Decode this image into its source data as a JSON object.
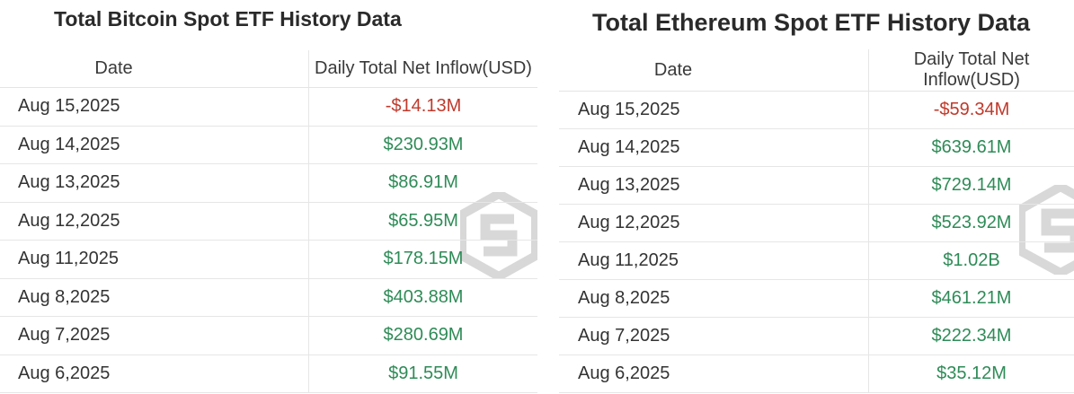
{
  "bitcoin": {
    "title": "Total Bitcoin Spot ETF History Data",
    "columns": [
      "Date",
      "Daily Total Net Inflow(USD)"
    ],
    "rows": [
      {
        "date": "Aug 15,2025",
        "value": "-$14.13M",
        "sign": "negative"
      },
      {
        "date": "Aug 14,2025",
        "value": "$230.93M",
        "sign": "positive"
      },
      {
        "date": "Aug 13,2025",
        "value": "$86.91M",
        "sign": "positive"
      },
      {
        "date": "Aug 12,2025",
        "value": "$65.95M",
        "sign": "positive"
      },
      {
        "date": "Aug 11,2025",
        "value": "$178.15M",
        "sign": "positive"
      },
      {
        "date": "Aug 8,2025",
        "value": "$403.88M",
        "sign": "positive"
      },
      {
        "date": "Aug 7,2025",
        "value": "$280.69M",
        "sign": "positive"
      },
      {
        "date": "Aug 6,2025",
        "value": "$91.55M",
        "sign": "positive"
      }
    ]
  },
  "ethereum": {
    "title": "Total Ethereum Spot ETF History Data",
    "columns": [
      "Date",
      "Daily Total Net Inflow(USD)"
    ],
    "rows": [
      {
        "date": "Aug 15,2025",
        "value": "-$59.34M",
        "sign": "negative"
      },
      {
        "date": "Aug 14,2025",
        "value": "$639.61M",
        "sign": "positive"
      },
      {
        "date": "Aug 13,2025",
        "value": "$729.14M",
        "sign": "positive"
      },
      {
        "date": "Aug 12,2025",
        "value": "$523.92M",
        "sign": "positive"
      },
      {
        "date": "Aug 11,2025",
        "value": "$1.02B",
        "sign": "positive"
      },
      {
        "date": "Aug 8,2025",
        "value": "$461.21M",
        "sign": "positive"
      },
      {
        "date": "Aug 7,2025",
        "value": "$222.34M",
        "sign": "positive"
      },
      {
        "date": "Aug 6,2025",
        "value": "$35.12M",
        "sign": "positive"
      }
    ]
  },
  "colors": {
    "positive": "#2e8b57",
    "negative": "#c0392b",
    "watermark": "#b9b9b9"
  },
  "icons": {
    "watermark": "cube-logo-icon"
  }
}
